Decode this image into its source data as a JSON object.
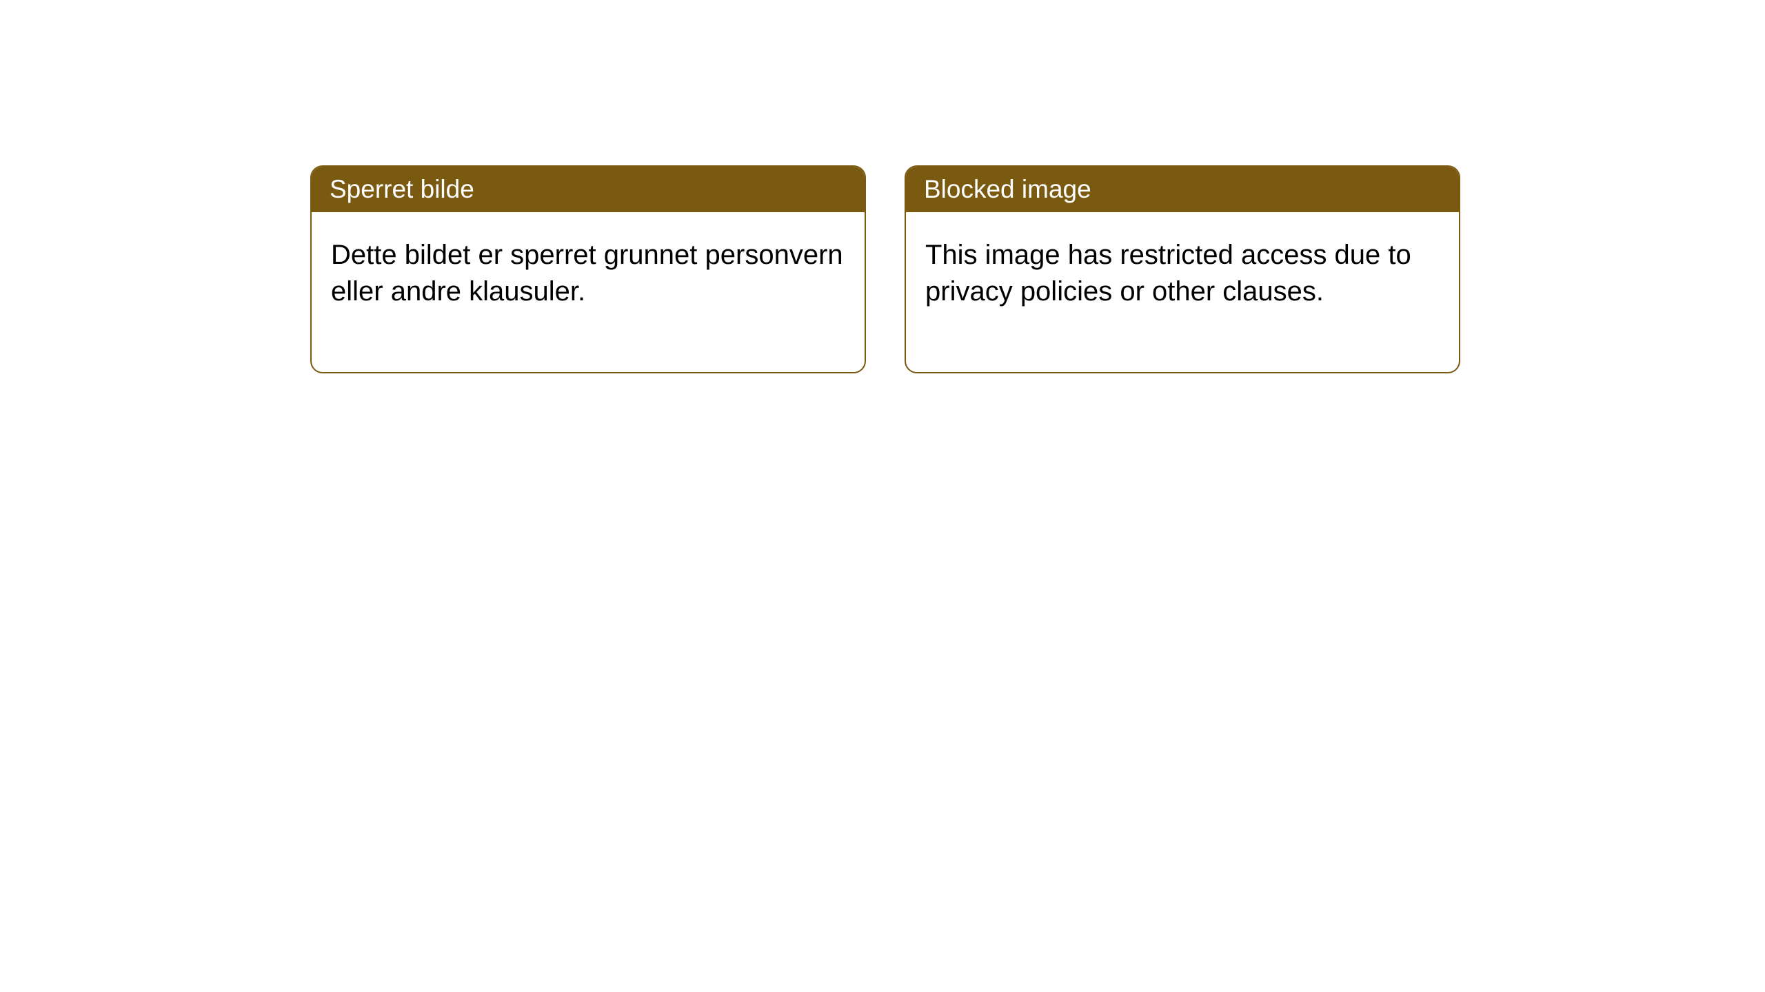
{
  "cards": [
    {
      "title": "Sperret bilde",
      "message": "Dette bildet er sperret grunnet personvern eller andre klausuler."
    },
    {
      "title": "Blocked image",
      "message": "This image has restricted access due to privacy policies or other clauses."
    }
  ],
  "styling": {
    "header_bg_color": "#7a5910",
    "header_text_color": "#ffffff",
    "card_border_color": "#7a5910",
    "card_bg_color": "#ffffff",
    "body_text_color": "#000000",
    "page_bg_color": "#ffffff",
    "border_radius": 18,
    "header_fontsize": 37,
    "body_fontsize": 40
  }
}
